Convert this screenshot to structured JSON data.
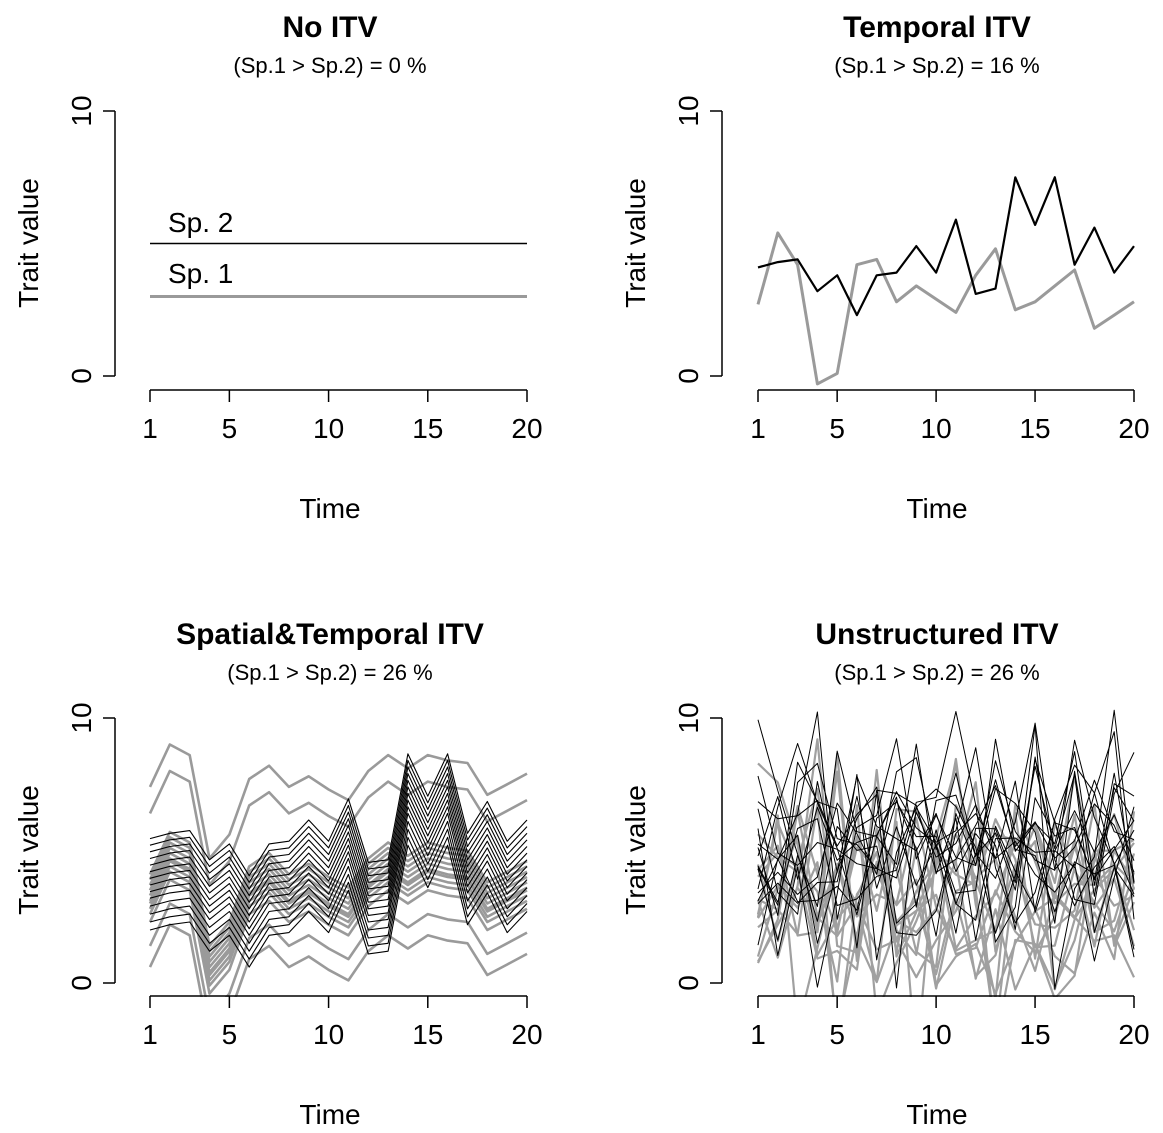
{
  "chart_data": [
    {
      "type": "line",
      "title": "No ITV",
      "subtitle": "(Sp.1 > Sp.2) = 0 %",
      "xlabel": "Time",
      "ylabel": "Trait value",
      "xlim": [
        1,
        20
      ],
      "ylim": [
        0,
        10
      ],
      "xticks": [
        "1",
        "5",
        "10",
        "15",
        "20"
      ],
      "yticks": [
        "0",
        "10"
      ],
      "series": [
        {
          "name": "Sp. 1",
          "color": "#9a9a9a",
          "width": 3,
          "x": [
            1,
            20
          ],
          "values": [
            3,
            3
          ]
        },
        {
          "name": "Sp. 2",
          "color": "#000000",
          "width": 1.6,
          "x": [
            1,
            20
          ],
          "values": [
            5,
            5
          ]
        }
      ],
      "annotations": [
        {
          "text": "Sp. 2",
          "x": 1,
          "y": 5
        },
        {
          "text": "Sp. 1",
          "x": 1,
          "y": 3
        }
      ]
    },
    {
      "type": "line",
      "title": "Temporal ITV",
      "subtitle": "(Sp.1 > Sp.2) = 16 %",
      "xlabel": "Time",
      "ylabel": "Trait value",
      "xlim": [
        1,
        20
      ],
      "ylim": [
        0,
        10
      ],
      "xticks": [
        "1",
        "5",
        "10",
        "15",
        "20"
      ],
      "yticks": [
        "0",
        "10"
      ],
      "series": [
        {
          "color": "#9a9a9a",
          "width": 3,
          "x": [
            1,
            2,
            3,
            4,
            5,
            6,
            7,
            8,
            9,
            10,
            11,
            12,
            13,
            14,
            15,
            16,
            17,
            18,
            19,
            20
          ],
          "values": [
            2.7,
            5.4,
            4.2,
            -0.3,
            0.1,
            4.2,
            4.4,
            2.8,
            3.4,
            2.9,
            2.4,
            3.8,
            4.8,
            2.5,
            2.8,
            3.4,
            4.0,
            1.8,
            2.3,
            2.8
          ]
        },
        {
          "color": "#000000",
          "width": 2.2,
          "x": [
            1,
            2,
            3,
            4,
            5,
            6,
            7,
            8,
            9,
            10,
            11,
            12,
            13,
            14,
            15,
            16,
            17,
            18,
            19,
            20
          ],
          "values": [
            4.1,
            4.3,
            4.4,
            3.2,
            3.8,
            2.3,
            3.8,
            3.9,
            4.9,
            3.9,
            5.9,
            3.1,
            3.3,
            7.5,
            5.7,
            7.5,
            4.2,
            5.6,
            3.9,
            4.9
          ]
        }
      ]
    },
    {
      "type": "line",
      "title": "Spatial&Temporal ITV",
      "subtitle": "(Sp.1 > Sp.2) = 26 %",
      "xlabel": "Time",
      "ylabel": "Trait value",
      "xlim": [
        1,
        20
      ],
      "ylim": [
        0,
        10
      ],
      "xticks": [
        "1",
        "5",
        "10",
        "15",
        "20"
      ],
      "yticks": [
        "0",
        "10"
      ],
      "species": [
        {
          "color": "#9a9a9a",
          "width": 2.6,
          "base": [
            3.0,
            4.6,
            4.2,
            0.3,
            1.2,
            3.3,
            3.8,
            3.0,
            3.4,
            2.9,
            2.5,
            3.6,
            4.2,
            3.7,
            4.2,
            4.0,
            3.9,
            2.7,
            3.1,
            3.5
          ],
          "offsets": [
            -2.4,
            -1.6,
            -0.7,
            -0.4,
            -0.2,
            0.0,
            0.1,
            0.3,
            0.5,
            0.7,
            0.9,
            1.1,
            3.4,
            4.4
          ]
        },
        {
          "color": "#000000",
          "width": 1.1,
          "base": [
            3.6,
            3.8,
            3.9,
            2.8,
            3.4,
            2.2,
            3.4,
            3.5,
            4.3,
            3.5,
            5.1,
            2.7,
            2.8,
            6.8,
            5.2,
            6.8,
            3.8,
            5.0,
            3.5,
            4.3
          ],
          "offsets": [
            -1.6,
            -1.3,
            -1.0,
            -0.7,
            -0.4,
            -0.15,
            0.1,
            0.35,
            0.6,
            0.85,
            1.1,
            1.35,
            1.6,
            1.85
          ]
        }
      ]
    },
    {
      "type": "line",
      "title": "Unstructured ITV",
      "subtitle": "(Sp.1 > Sp.2) = 26 %",
      "xlabel": "Time",
      "ylabel": "Trait value",
      "xlim": [
        1,
        20
      ],
      "ylim": [
        0,
        10
      ],
      "xticks": [
        "1",
        "5",
        "10",
        "15",
        "20"
      ],
      "yticks": [
        "0",
        "10"
      ],
      "species": [
        {
          "color": "#a0a0a0",
          "width": 2.2,
          "mean": 3.2,
          "sd": 2.2,
          "lines": 14,
          "seed": 11
        },
        {
          "color": "#000000",
          "width": 1.0,
          "mean": 5.0,
          "sd": 2.0,
          "lines": 16,
          "seed": 29
        }
      ]
    }
  ]
}
